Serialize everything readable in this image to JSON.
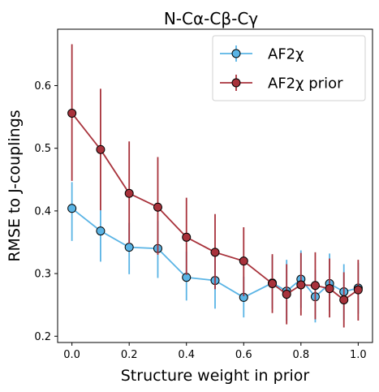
{
  "chart_data": {
    "type": "line",
    "title": "N-Cα-Cβ-Cγ",
    "xlabel": "Structure weight in prior",
    "ylabel": "RMSE to J-couplings",
    "xlim": [
      -0.05,
      1.05
    ],
    "ylim": [
      0.19,
      0.69
    ],
    "xticks": [
      0.0,
      0.2,
      0.4,
      0.6,
      0.8,
      1.0
    ],
    "xtick_labels": [
      "0.0",
      "0.2",
      "0.4",
      "0.6",
      "0.8",
      "1.0"
    ],
    "yticks": [
      0.2,
      0.3,
      0.4,
      0.5,
      0.6
    ],
    "ytick_labels": [
      "0.2",
      "0.3",
      "0.4",
      "0.5",
      "0.6"
    ],
    "grid": false,
    "legend_position": "top-right",
    "series": [
      {
        "name": "AF2χ",
        "color": "#5ab4e5",
        "x": [
          0.0,
          0.1,
          0.2,
          0.3,
          0.4,
          0.5,
          0.6,
          0.7,
          0.75,
          0.8,
          0.85,
          0.9,
          0.95,
          1.0
        ],
        "y": [
          0.404,
          0.368,
          0.342,
          0.34,
          0.294,
          0.289,
          0.262,
          0.285,
          0.272,
          0.291,
          0.263,
          0.284,
          0.271,
          0.277
        ],
        "err_low": [
          0.352,
          0.319,
          0.299,
          0.293,
          0.257,
          0.244,
          0.23,
          0.244,
          0.225,
          0.245,
          0.222,
          0.24,
          0.226,
          0.236
        ],
        "err_high": [
          0.446,
          0.401,
          0.381,
          0.384,
          0.335,
          0.33,
          0.295,
          0.328,
          0.322,
          0.337,
          0.306,
          0.332,
          0.315,
          0.317
        ]
      },
      {
        "name": "AF2χ prior",
        "color": "#a8323b",
        "x": [
          0.0,
          0.1,
          0.2,
          0.3,
          0.4,
          0.5,
          0.6,
          0.7,
          0.75,
          0.8,
          0.85,
          0.9,
          0.95,
          1.0
        ],
        "y": [
          0.556,
          0.498,
          0.428,
          0.406,
          0.358,
          0.334,
          0.32,
          0.284,
          0.267,
          0.282,
          0.281,
          0.276,
          0.258,
          0.274
        ],
        "err_low": [
          0.448,
          0.401,
          0.348,
          0.33,
          0.298,
          0.275,
          0.264,
          0.237,
          0.219,
          0.233,
          0.227,
          0.23,
          0.214,
          0.225
        ],
        "err_high": [
          0.666,
          0.595,
          0.511,
          0.486,
          0.421,
          0.395,
          0.374,
          0.331,
          0.315,
          0.333,
          0.334,
          0.324,
          0.302,
          0.322
        ]
      }
    ]
  }
}
